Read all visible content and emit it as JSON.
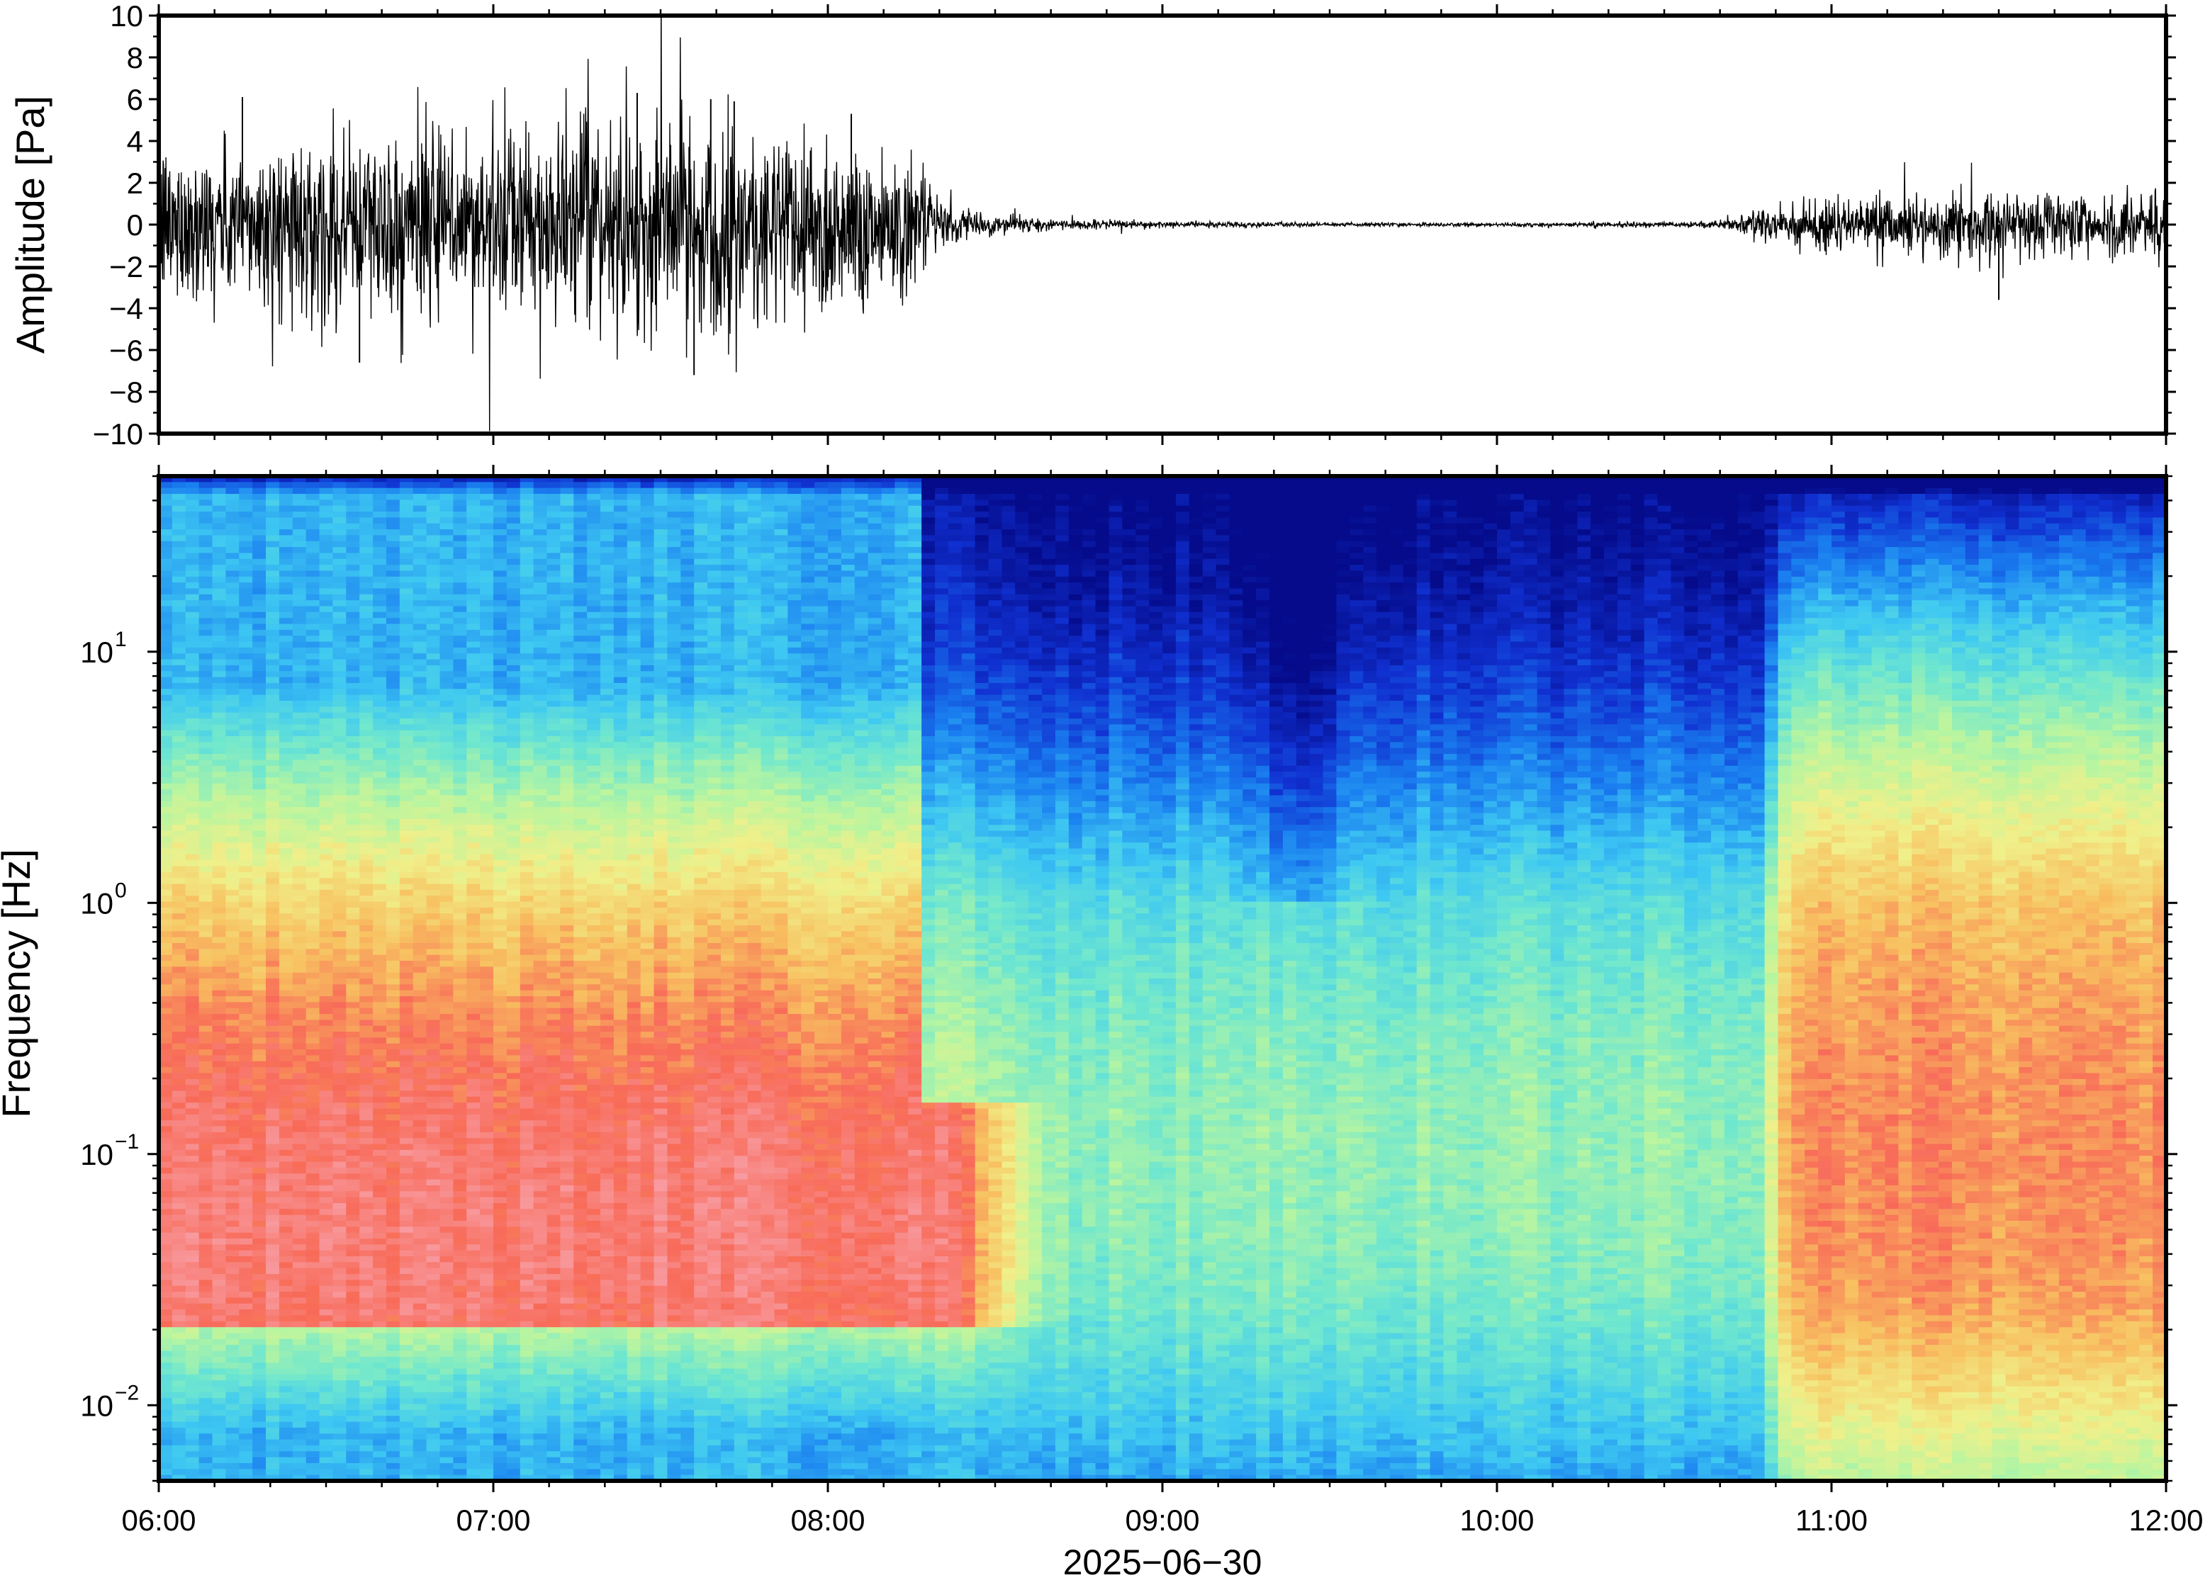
{
  "chart_data": [
    {
      "type": "line",
      "panel": "waveform",
      "ylabel": "Amplitude [Pa]",
      "xlabel": "",
      "ylim": [
        -10,
        10
      ],
      "yticks": [
        10,
        8,
        6,
        4,
        2,
        0,
        -2,
        -4,
        -6,
        -8,
        -10
      ],
      "ytick_labels": [
        "10",
        "8",
        "6",
        "4",
        "2",
        "0",
        "−2",
        "−4",
        "−6",
        "−8",
        "−10"
      ],
      "xlim": [
        "06:00",
        "12:00"
      ],
      "grid": false,
      "series": [
        {
          "color": "#000000",
          "envelope_hours": [
            6.0,
            6.25,
            6.5,
            6.75,
            7.0,
            7.25,
            7.5,
            7.75,
            8.0,
            8.25,
            8.35,
            8.5,
            8.75,
            9.0,
            9.5,
            10.0,
            10.5,
            10.7,
            10.8,
            11.0,
            11.25,
            11.5,
            11.75,
            12.0
          ],
          "envelope_amplitude": [
            2.5,
            2.4,
            2.8,
            2.9,
            2.9,
            3.0,
            3.3,
            3.4,
            3.0,
            2.2,
            0.6,
            0.3,
            0.15,
            0.1,
            0.06,
            0.06,
            0.08,
            0.12,
            0.6,
            0.9,
            0.95,
            1.0,
            1.0,
            1.1
          ],
          "peaks": [
            {
              "x": 6.25,
              "y": 6.1
            },
            {
              "x": 6.6,
              "y": -6.6
            },
            {
              "x": 7.43,
              "y": 6.3
            },
            {
              "x": 7.6,
              "y": -7.2
            },
            {
              "x": 7.65,
              "y": 6.0
            },
            {
              "x": 7.72,
              "y": 5.9
            },
            {
              "x": 8.07,
              "y": 5.3
            },
            {
              "x": 11.5,
              "y": -3.6
            }
          ]
        }
      ]
    },
    {
      "type": "heatmap",
      "panel": "spectrogram",
      "ylabel": "Frequency [Hz]",
      "xlabel": "2025−06−30",
      "yscale": "log",
      "ylim": [
        0.005,
        50
      ],
      "yticks": [
        0.01,
        0.1,
        1,
        10
      ],
      "ytick_base": "10",
      "ytick_exponents": [
        "−2",
        "−1",
        "0",
        "1"
      ],
      "xticks": [
        "06:00",
        "07:00",
        "08:00",
        "09:00",
        "10:00",
        "11:00",
        "12:00"
      ],
      "xlim": [
        "06:00",
        "12:00"
      ],
      "colormap": "jet-like (blue low power, red high power)",
      "colormap_stops": [
        "#050b8a",
        "#1030d0",
        "#1a7ff0",
        "#3ec8f2",
        "#6fe7cf",
        "#b8f5a0",
        "#f0f08a",
        "#f8c060",
        "#f86a58",
        "#f8a0a8"
      ],
      "grid": false,
      "segments": [
        {
          "from_hour": 6.0,
          "to_hour": 8.3,
          "regime": "high power"
        },
        {
          "from_hour": 8.3,
          "to_hour": 10.8,
          "regime": "low power"
        },
        {
          "from_hour": 10.8,
          "to_hour": 12.0,
          "regime": "moderate power"
        }
      ]
    }
  ]
}
